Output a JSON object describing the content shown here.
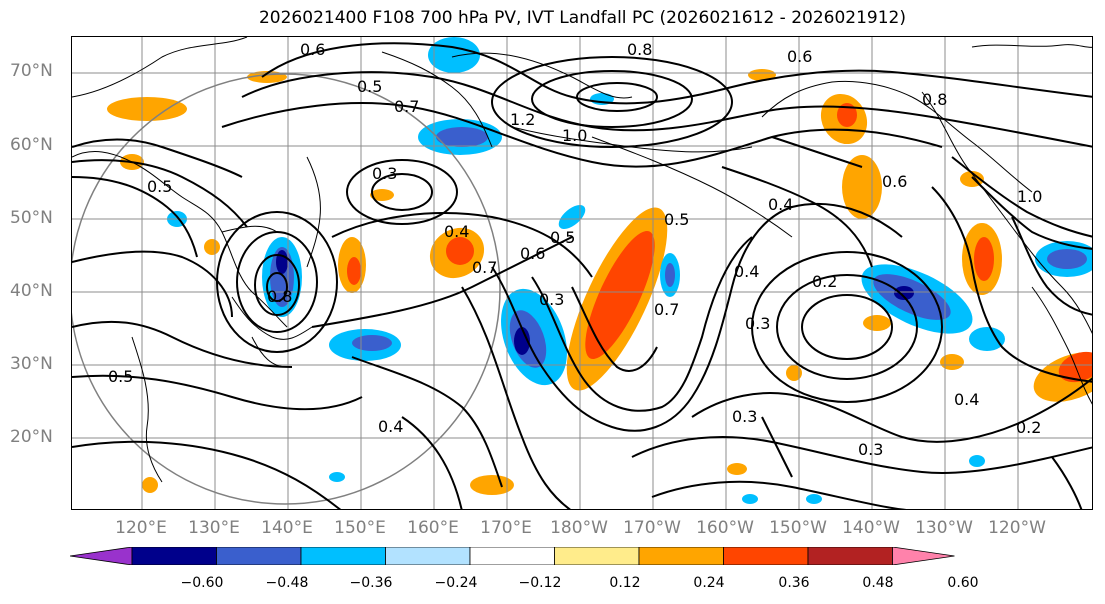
{
  "title": "2026021400 F108 700 hPa PV, IVT Landfall PC (2026021612 - 2026021912)",
  "lat_labels": [
    "70°N",
    "60°N",
    "50°N",
    "40°N",
    "30°N",
    "20°N"
  ],
  "lon_labels": [
    "120°E",
    "130°E",
    "140°E",
    "150°E",
    "160°E",
    "170°E",
    "180°W",
    "170°W",
    "160°W",
    "150°W",
    "140°W",
    "130°W",
    "120°W"
  ],
  "colorbar": {
    "colors": [
      "#9932cc",
      "#00008b",
      "#3a5fcd",
      "#00bfff",
      "#b2e2ff",
      "#ffffff",
      "#ffec8b",
      "#ffa500",
      "#ff4500",
      "#b22222",
      "#ff82ab"
    ],
    "ticks": [
      "−0.60",
      "−0.48",
      "−0.36",
      "−0.24",
      "−0.12",
      "0.12",
      "0.24",
      "0.36",
      "0.48",
      "0.60"
    ]
  },
  "contour_labels": [
    {
      "text": "0.6"
    },
    {
      "text": "0.8"
    },
    {
      "text": "0.6"
    },
    {
      "text": "0.5"
    },
    {
      "text": "0.7"
    },
    {
      "text": "1.2"
    },
    {
      "text": "1.0"
    },
    {
      "text": "0.8"
    },
    {
      "text": "0.3"
    },
    {
      "text": "0.5"
    },
    {
      "text": "0.4"
    },
    {
      "text": "0.7"
    },
    {
      "text": "0.6"
    },
    {
      "text": "0.5"
    },
    {
      "text": "0.5"
    },
    {
      "text": "0.3"
    },
    {
      "text": "0.4"
    },
    {
      "text": "0.2"
    },
    {
      "text": "0.3"
    },
    {
      "text": "0.4"
    },
    {
      "text": "0.3"
    },
    {
      "text": "0.4"
    },
    {
      "text": "0.2"
    },
    {
      "text": "0.3"
    },
    {
      "text": "0.5"
    },
    {
      "text": "0.4"
    },
    {
      "text": "0.8"
    },
    {
      "text": "1.0"
    },
    {
      "text": "0.7"
    },
    {
      "text": "0.6"
    }
  ]
}
